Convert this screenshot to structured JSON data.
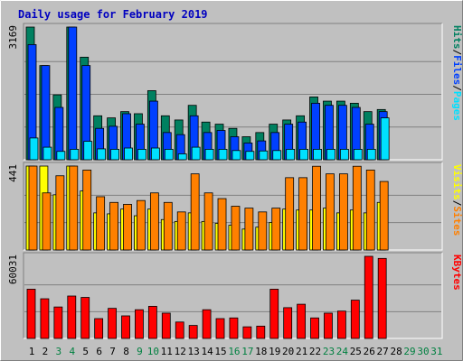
{
  "chart_data": {
    "type": "bar",
    "title": "Daily usage for February 2019",
    "days": [
      "1",
      "2",
      "3",
      "4",
      "5",
      "6",
      "7",
      "8",
      "9",
      "10",
      "11",
      "12",
      "13",
      "14",
      "15",
      "16",
      "17",
      "18",
      "19",
      "20",
      "21",
      "22",
      "23",
      "24",
      "25",
      "26",
      "27",
      "28",
      "29",
      "30",
      "31"
    ],
    "day_colors": [
      "#000000",
      "#000000",
      "#008040",
      "#008040",
      "#000000",
      "#000000",
      "#000000",
      "#000000",
      "#008040",
      "#008040",
      "#000000",
      "#000000",
      "#000000",
      "#000000",
      "#000000",
      "#008040",
      "#008040",
      "#000000",
      "#000000",
      "#000000",
      "#000000",
      "#000000",
      "#008040",
      "#008040",
      "#000000",
      "#000000",
      "#000000",
      "#000000",
      "#008040",
      "#008040",
      "#008040"
    ],
    "panels": [
      {
        "id": "hits-files-pages",
        "ymax": 3169,
        "ymax_label": "3169",
        "series": [
          {
            "name": "Hits",
            "color": "#008060",
            "values": [
              3169,
              2250,
              1550,
              3169,
              2450,
              1050,
              1000,
              1150,
              1100,
              1650,
              1050,
              950,
              1300,
              900,
              850,
              750,
              550,
              650,
              850,
              950,
              1050,
              1500,
              1400,
              1400,
              1350,
              1150,
              1200,
              0,
              0,
              0,
              0
            ]
          },
          {
            "name": "Files",
            "color": "#0040ff",
            "values": [
              2750,
              2250,
              1250,
              3169,
              2250,
              750,
              800,
              1100,
              850,
              1400,
              650,
              600,
              1050,
              650,
              700,
              550,
              400,
              450,
              650,
              850,
              900,
              1350,
              1300,
              1300,
              1250,
              850,
              1150,
              0,
              0,
              0,
              0
            ]
          },
          {
            "name": "Pages",
            "color": "#00e0ff",
            "values": [
              520,
              300,
              200,
              250,
              440,
              260,
              250,
              280,
              250,
              280,
              250,
              140,
              300,
              250,
              250,
              220,
              200,
              210,
              220,
              250,
              250,
              250,
              250,
              250,
              250,
              250,
              1000,
              0,
              0,
              0,
              0
            ]
          }
        ],
        "legend": [
          {
            "text": "Hits",
            "color": "#008060"
          },
          {
            "text": "/",
            "color": "#000000"
          },
          {
            "text": "Files",
            "color": "#0040ff"
          },
          {
            "text": "/",
            "color": "#000000"
          },
          {
            "text": "Pages",
            "color": "#00e0ff"
          }
        ]
      },
      {
        "id": "visits-sites",
        "ymax": 441,
        "ymax_label": "441",
        "series": [
          {
            "name": "Visits",
            "color": "#ffff00",
            "values": [
              441,
              441,
              290,
              441,
              310,
              195,
              190,
              215,
              180,
              215,
              160,
              150,
              195,
              150,
              140,
              130,
              110,
              120,
              145,
              215,
              210,
              210,
              220,
              195,
              210,
              195,
              250,
              0,
              0,
              0,
              0
            ]
          },
          {
            "name": "Sites",
            "color": "#ff8000",
            "values": [
              441,
              300,
              390,
              441,
              420,
              280,
              250,
              240,
              260,
              300,
              250,
              200,
              400,
              300,
              270,
              230,
              220,
              200,
              220,
              380,
              380,
              440,
              400,
              400,
              440,
              420,
              360,
              0,
              0,
              0,
              0
            ]
          }
        ],
        "legend": [
          {
            "text": "Visits",
            "color": "#ffff00"
          },
          {
            "text": "/",
            "color": "#000000"
          },
          {
            "text": "Sites",
            "color": "#ff8000"
          }
        ]
      },
      {
        "id": "kbytes",
        "ymax": 60031,
        "ymax_label": "60031",
        "series": [
          {
            "name": "KBytes",
            "color": "#ff0000",
            "values": [
              36000,
              29000,
              23000,
              31000,
              30000,
              14500,
              22000,
              16500,
              21000,
              23500,
              18500,
              12000,
              9500,
              21000,
              14500,
              15000,
              8500,
              9000,
              36000,
              22500,
              25000,
              15000,
              18500,
              20000,
              28000,
              60031,
              58500,
              0,
              0,
              0,
              0
            ]
          }
        ],
        "legend": [
          {
            "text": "KBytes",
            "color": "#ff0000"
          }
        ]
      }
    ]
  }
}
